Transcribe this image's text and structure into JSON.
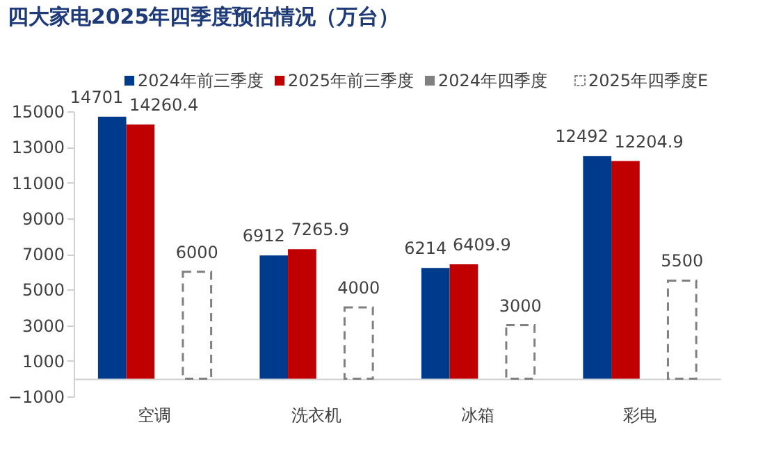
{
  "chart_data": {
    "type": "bar",
    "title": "四大家电2025年四季度预估情况（万台）",
    "categories": [
      "空调",
      "洗衣机",
      "冰箱",
      "彩电"
    ],
    "series": [
      {
        "name": "2024年前三季度",
        "color": "#003a8c",
        "values": [
          14701,
          6912,
          6214,
          12492
        ]
      },
      {
        "name": "2025年前三季度",
        "color": "#c00000",
        "values": [
          14260.4,
          7265.9,
          6409.9,
          12204.9
        ]
      },
      {
        "name": "2024年四季度",
        "color": "#808080",
        "values": [
          null,
          null,
          null,
          null
        ]
      },
      {
        "name": "2025年四季度E",
        "color": "#808080",
        "line_style": "dashed",
        "values": [
          6000,
          4000,
          3000,
          5500
        ]
      }
    ],
    "ylim": [
      -1000,
      15000
    ],
    "yticks": [
      -1000,
      1000,
      3000,
      5000,
      7000,
      9000,
      11000,
      13000,
      15000
    ],
    "data_labels": true,
    "grid": false,
    "legend": "top"
  }
}
